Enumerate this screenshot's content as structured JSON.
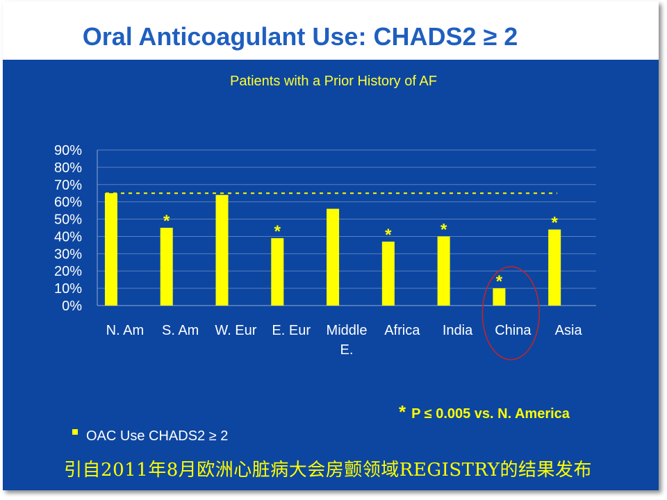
{
  "slide": {
    "title": "Oral Anticoagulant Use: CHADS2 ≥ 2",
    "footnote_symbol": "*",
    "footnote_text": "P ≤ 0.005 vs. N. America",
    "caption": "引自2011年8月欧洲心脏病大会房颤领域REGISTRY的结果发布"
  },
  "colors": {
    "background_blue": "#0d46a0",
    "bar_yellow": "#ffff00",
    "title_blue": "#1f5fbf",
    "highlight_circle": "#cc2222"
  },
  "chart_data": {
    "type": "bar",
    "subtitle": "Patients with a Prior History of AF",
    "categories": [
      "N. Am",
      "S. Am",
      "W. Eur",
      "E. Eur",
      "Middle E.",
      "Africa",
      "India",
      "China",
      "Asia"
    ],
    "category_lines": [
      [
        "N. Am"
      ],
      [
        "S. Am"
      ],
      [
        "W. Eur"
      ],
      [
        "E. Eur"
      ],
      [
        "Middle",
        "E."
      ],
      [
        "Africa"
      ],
      [
        "India"
      ],
      [
        "China"
      ],
      [
        "Asia"
      ]
    ],
    "series": [
      {
        "name": "OAC Use CHADS2 ≥ 2",
        "values": [
          65,
          45,
          64,
          39,
          56,
          37,
          40,
          10,
          44
        ]
      }
    ],
    "significant": [
      false,
      true,
      false,
      true,
      false,
      true,
      true,
      true,
      true
    ],
    "significance_marker": "*",
    "reference_line": {
      "value": 65,
      "style": "dashed"
    },
    "highlighted_category": "China",
    "yticks": [
      "0%",
      "10%",
      "20%",
      "30%",
      "40%",
      "50%",
      "60%",
      "70%",
      "80%",
      "90%"
    ],
    "ylim": [
      0,
      90
    ],
    "grid": true,
    "legend": "bottom-left"
  }
}
